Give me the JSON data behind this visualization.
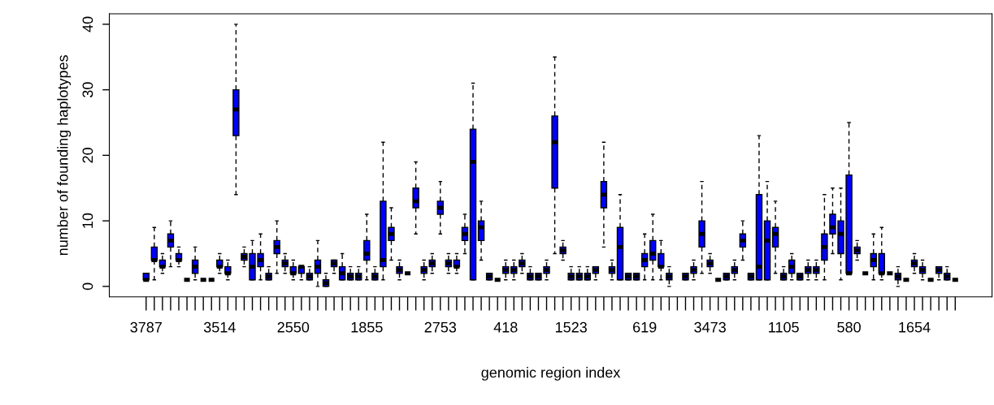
{
  "chart_data": {
    "type": "box",
    "xlabel": "genomic region index",
    "ylabel": "number of founding haplotypes",
    "categories": [
      "3787",
      null,
      null,
      null,
      null,
      null,
      null,
      null,
      null,
      "3514",
      null,
      null,
      null,
      null,
      null,
      null,
      null,
      null,
      "2550",
      null,
      null,
      null,
      null,
      null,
      null,
      null,
      null,
      "1855",
      null,
      null,
      null,
      null,
      null,
      null,
      null,
      null,
      "2753",
      null,
      null,
      null,
      null,
      null,
      null,
      null,
      "418",
      null,
      null,
      null,
      null,
      null,
      null,
      null,
      "1523",
      null,
      null,
      null,
      null,
      null,
      null,
      null,
      null,
      "619",
      null,
      null,
      null,
      null,
      null,
      null,
      null,
      "3473",
      null,
      null,
      null,
      null,
      null,
      null,
      null,
      null,
      "1105",
      null,
      null,
      null,
      null,
      null,
      null,
      null,
      "580",
      null,
      null,
      null,
      null,
      null,
      null,
      null,
      "1654",
      null,
      null,
      null,
      null,
      null
    ],
    "colors": [
      "#0000ff",
      "#0000ff",
      "#0000ff",
      "#0000ff",
      "#0000ff",
      "#000000",
      "#0000ff",
      "#000000",
      "#000000",
      "#0000ff",
      "#0000ff",
      "#0000ff",
      "#0000ff",
      "#0000ff",
      "#0000ff",
      "#0000ff",
      "#0000ff",
      "#0000ff",
      "#0000ff",
      "#0000ff",
      "#0000ff",
      "#0000ff",
      "#0000ff",
      "#0000ff",
      "#0000ff",
      "#0000ff",
      "#0000ff",
      "#0000ff",
      "#0000ff",
      "#0000ff",
      "#0000ff",
      "#0000ff",
      "#000000",
      "#0000ff",
      "#0000ff",
      "#0000ff",
      "#0000ff",
      "#0000ff",
      "#0000ff",
      "#0000ff",
      "#0000ff",
      "#0000ff",
      "#0000ff",
      "#000000",
      "#0000ff",
      "#0000ff",
      "#0000ff",
      "#0000ff",
      "#0000ff",
      "#0000ff",
      "#0000ff",
      "#0000ff",
      "#0000ff",
      "#0000ff",
      "#0000ff",
      "#0000ff",
      "#0000ff",
      "#0000ff",
      "#0000ff",
      "#0000ff",
      "#0000ff",
      "#0000ff",
      "#0000ff",
      "#0000ff",
      "#0000ff",
      null,
      "#0000ff",
      "#0000ff",
      "#0000ff",
      "#0000ff",
      "#000000",
      "#0000ff",
      "#0000ff",
      "#0000ff",
      "#0000ff",
      "#0000ff",
      "#0000ff",
      "#0000ff",
      "#0000ff",
      "#0000ff",
      "#0000ff",
      "#0000ff",
      "#0000ff",
      "#0000ff",
      "#0000ff",
      "#0000ff",
      "#0000ff",
      "#0000ff",
      "#000000",
      "#0000ff",
      "#0000ff",
      "#000000",
      "#0000ff",
      "#000000",
      "#0000ff",
      "#0000ff",
      "#000000",
      "#0000ff",
      "#0000ff",
      "#000000"
    ],
    "ylim": [
      -1.6,
      41.6
    ],
    "yticks": [
      0,
      10,
      20,
      30,
      40
    ],
    "boxes": [
      {
        "low": 1,
        "q1": 1,
        "median": 1,
        "q3": 2,
        "high": 2
      },
      {
        "low": 1,
        "q1": 4,
        "median": 4,
        "q3": 6,
        "high": 9
      },
      {
        "low": 2,
        "q1": 3,
        "median": 3,
        "q3": 4,
        "high": 5
      },
      {
        "low": 3,
        "q1": 6,
        "median": 7,
        "q3": 8,
        "high": 10
      },
      {
        "low": 3,
        "q1": 4,
        "median": 4,
        "q3": 5,
        "high": 6
      },
      {
        "low": 1,
        "q1": 1,
        "median": 1,
        "q3": 1,
        "high": 1
      },
      {
        "low": 1,
        "q1": 2,
        "median": 3,
        "q3": 4,
        "high": 6
      },
      {
        "low": 1,
        "q1": 1,
        "median": 1,
        "q3": 1,
        "high": 1
      },
      {
        "low": 1,
        "q1": 1,
        "median": 1,
        "q3": 1,
        "high": 1
      },
      {
        "low": 2,
        "q1": 3,
        "median": 3,
        "q3": 4,
        "high": 5
      },
      {
        "low": 1,
        "q1": 2,
        "median": 2,
        "q3": 3,
        "high": 4
      },
      {
        "low": 14,
        "q1": 23,
        "median": 27,
        "q3": 30,
        "high": 40
      },
      {
        "low": 3,
        "q1": 4,
        "median": 4.5,
        "q3": 5,
        "high": 6
      },
      {
        "low": 1,
        "q1": 1,
        "median": 3,
        "q3": 5,
        "high": 7
      },
      {
        "low": 1,
        "q1": 3,
        "median": 4,
        "q3": 5,
        "high": 8
      },
      {
        "low": 1,
        "q1": 1,
        "median": 1.5,
        "q3": 2,
        "high": 3
      },
      {
        "low": 2,
        "q1": 5,
        "median": 6,
        "q3": 7,
        "high": 10
      },
      {
        "low": 2,
        "q1": 3,
        "median": 3.5,
        "q3": 4,
        "high": 5
      },
      {
        "low": 1,
        "q1": 2,
        "median": 2,
        "q3": 3,
        "high": 4
      },
      {
        "low": 1,
        "q1": 2,
        "median": 3,
        "q3": 3,
        "high": 3
      },
      {
        "low": 1,
        "q1": 1,
        "median": 1.5,
        "q3": 2,
        "high": 3
      },
      {
        "low": 0,
        "q1": 2,
        "median": 3,
        "q3": 4,
        "high": 7
      },
      {
        "low": 0,
        "q1": 0,
        "median": 0.5,
        "q3": 1,
        "high": 2
      },
      {
        "low": 2,
        "q1": 3,
        "median": 3.5,
        "q3": 4,
        "high": 4
      },
      {
        "low": 1,
        "q1": 1,
        "median": 2,
        "q3": 3,
        "high": 5
      },
      {
        "low": 1,
        "q1": 1,
        "median": 1.5,
        "q3": 2,
        "high": 3
      },
      {
        "low": 1,
        "q1": 1,
        "median": 1.5,
        "q3": 2,
        "high": 3
      },
      {
        "low": 1,
        "q1": 4,
        "median": 5,
        "q3": 7,
        "high": 11
      },
      {
        "low": 1,
        "q1": 1,
        "median": 1.5,
        "q3": 2,
        "high": 3
      },
      {
        "low": 1,
        "q1": 3,
        "median": 4,
        "q3": 13,
        "high": 22
      },
      {
        "low": 4,
        "q1": 7,
        "median": 8,
        "q3": 9,
        "high": 12
      },
      {
        "low": 1,
        "q1": 2,
        "median": 2.5,
        "q3": 3,
        "high": 4
      },
      {
        "low": 2,
        "q1": 2,
        "median": 2,
        "q3": 2,
        "high": 2
      },
      {
        "low": 8,
        "q1": 12,
        "median": 13,
        "q3": 15,
        "high": 19
      },
      {
        "low": 1,
        "q1": 2,
        "median": 2.5,
        "q3": 3,
        "high": 4
      },
      {
        "low": 2,
        "q1": 3,
        "median": 3.5,
        "q3": 4,
        "high": 5
      },
      {
        "low": 8,
        "q1": 11,
        "median": 12,
        "q3": 13,
        "high": 16
      },
      {
        "low": 2,
        "q1": 3,
        "median": 3.5,
        "q3": 4,
        "high": 5
      },
      {
        "low": 2,
        "q1": 3,
        "median": 3,
        "q3": 4,
        "high": 5
      },
      {
        "low": 5,
        "q1": 7,
        "median": 8,
        "q3": 9,
        "high": 11
      },
      {
        "low": 1,
        "q1": 1,
        "median": 19,
        "q3": 24,
        "high": 31
      },
      {
        "low": 4,
        "q1": 7,
        "median": 9,
        "q3": 10,
        "high": 13
      },
      {
        "low": 1,
        "q1": 1,
        "median": 1.5,
        "q3": 2,
        "high": 2
      },
      {
        "low": 1,
        "q1": 1,
        "median": 1,
        "q3": 1,
        "high": 1
      },
      {
        "low": 1,
        "q1": 2,
        "median": 2.5,
        "q3": 3,
        "high": 4
      },
      {
        "low": 1,
        "q1": 2,
        "median": 2.5,
        "q3": 3,
        "high": 4
      },
      {
        "low": 2,
        "q1": 3,
        "median": 3.5,
        "q3": 4,
        "high": 5
      },
      {
        "low": 1,
        "q1": 1,
        "median": 1.5,
        "q3": 2,
        "high": 3
      },
      {
        "low": 1,
        "q1": 1,
        "median": 1.5,
        "q3": 2,
        "high": 2
      },
      {
        "low": 1,
        "q1": 2,
        "median": 2.5,
        "q3": 3,
        "high": 4
      },
      {
        "low": 5,
        "q1": 15,
        "median": 22,
        "q3": 26,
        "high": 35
      },
      {
        "low": 4,
        "q1": 5,
        "median": 5.5,
        "q3": 6,
        "high": 7
      },
      {
        "low": 1,
        "q1": 1,
        "median": 1.5,
        "q3": 2,
        "high": 3
      },
      {
        "low": 1,
        "q1": 1,
        "median": 1.5,
        "q3": 2,
        "high": 3
      },
      {
        "low": 1,
        "q1": 1,
        "median": 1.5,
        "q3": 2,
        "high": 3
      },
      {
        "low": 1,
        "q1": 2,
        "median": 2.5,
        "q3": 3,
        "high": 3
      },
      {
        "low": 6,
        "q1": 12,
        "median": 14,
        "q3": 16,
        "high": 22
      },
      {
        "low": 1,
        "q1": 2,
        "median": 2.5,
        "q3": 3,
        "high": 4
      },
      {
        "low": 1,
        "q1": 1,
        "median": 6,
        "q3": 9,
        "high": 14
      },
      {
        "low": 1,
        "q1": 1,
        "median": 1.5,
        "q3": 2,
        "high": 2
      },
      {
        "low": 1,
        "q1": 1,
        "median": 1.5,
        "q3": 2,
        "high": 2
      },
      {
        "low": 1,
        "q1": 3,
        "median": 4,
        "q3": 5,
        "high": 8
      },
      {
        "low": 1,
        "q1": 4,
        "median": 5,
        "q3": 7,
        "high": 11
      },
      {
        "low": 1,
        "q1": 3,
        "median": 3,
        "q3": 5,
        "high": 7
      },
      {
        "low": 0,
        "q1": 1,
        "median": 1.5,
        "q3": 2,
        "high": 3
      },
      null,
      {
        "low": 1,
        "q1": 1,
        "median": 1.5,
        "q3": 2,
        "high": 2
      },
      {
        "low": 1,
        "q1": 2,
        "median": 2.5,
        "q3": 3,
        "high": 4
      },
      {
        "low": 2,
        "q1": 6,
        "median": 8,
        "q3": 10,
        "high": 16
      },
      {
        "low": 2,
        "q1": 3,
        "median": 3.5,
        "q3": 4,
        "high": 5
      },
      {
        "low": 1,
        "q1": 1,
        "median": 1,
        "q3": 1,
        "high": 1
      },
      {
        "low": 1,
        "q1": 1,
        "median": 1.5,
        "q3": 2,
        "high": 2
      },
      {
        "low": 1,
        "q1": 2,
        "median": 2.5,
        "q3": 3,
        "high": 4
      },
      {
        "low": 4,
        "q1": 6,
        "median": 7,
        "q3": 8,
        "high": 10
      },
      {
        "low": 1,
        "q1": 1,
        "median": 1.5,
        "q3": 2,
        "high": 2
      },
      {
        "low": 1,
        "q1": 1,
        "median": 3,
        "q3": 14,
        "high": 23
      },
      {
        "low": 1,
        "q1": 1,
        "median": 7,
        "q3": 10,
        "high": 16
      },
      {
        "low": 2,
        "q1": 6,
        "median": 8,
        "q3": 9,
        "high": 13
      },
      {
        "low": 1,
        "q1": 1,
        "median": 1.5,
        "q3": 2,
        "high": 3
      },
      {
        "low": 1,
        "q1": 2,
        "median": 3,
        "q3": 4,
        "high": 5
      },
      {
        "low": 1,
        "q1": 1,
        "median": 1.5,
        "q3": 2,
        "high": 2
      },
      {
        "low": 1,
        "q1": 2,
        "median": 2.5,
        "q3": 3,
        "high": 4
      },
      {
        "low": 1,
        "q1": 2,
        "median": 2.5,
        "q3": 3,
        "high": 4
      },
      {
        "low": 1,
        "q1": 4,
        "median": 6,
        "q3": 8,
        "high": 14
      },
      {
        "low": 5,
        "q1": 8,
        "median": 9,
        "q3": 11,
        "high": 15
      },
      {
        "low": 1,
        "q1": 5,
        "median": 8,
        "q3": 10,
        "high": 15
      },
      {
        "low": 2,
        "q1": 2,
        "median": 2,
        "q3": 17,
        "high": 25
      },
      {
        "low": 4,
        "q1": 5,
        "median": 5.5,
        "q3": 6,
        "high": 7
      },
      {
        "low": 2,
        "q1": 2,
        "median": 2,
        "q3": 2,
        "high": 2
      },
      {
        "low": 1,
        "q1": 3,
        "median": 4,
        "q3": 5,
        "high": 8
      },
      {
        "low": 1,
        "q1": 2,
        "median": 2,
        "q3": 5,
        "high": 9
      },
      {
        "low": 2,
        "q1": 2,
        "median": 2,
        "q3": 2,
        "high": 2
      },
      {
        "low": 0,
        "q1": 1,
        "median": 1.5,
        "q3": 2,
        "high": 3
      },
      {
        "low": 1,
        "q1": 1,
        "median": 1,
        "q3": 1,
        "high": 1
      },
      {
        "low": 2,
        "q1": 3,
        "median": 3.5,
        "q3": 4,
        "high": 5
      },
      {
        "low": 1,
        "q1": 2,
        "median": 2.5,
        "q3": 3,
        "high": 4
      },
      {
        "low": 1,
        "q1": 1,
        "median": 1,
        "q3": 1,
        "high": 1
      },
      {
        "low": 1,
        "q1": 2,
        "median": 2.5,
        "q3": 3,
        "high": 3
      },
      {
        "low": 1,
        "q1": 1,
        "median": 1.5,
        "q3": 2,
        "high": 3
      },
      {
        "low": 1,
        "q1": 1,
        "median": 1,
        "q3": 1,
        "high": 1
      }
    ]
  }
}
